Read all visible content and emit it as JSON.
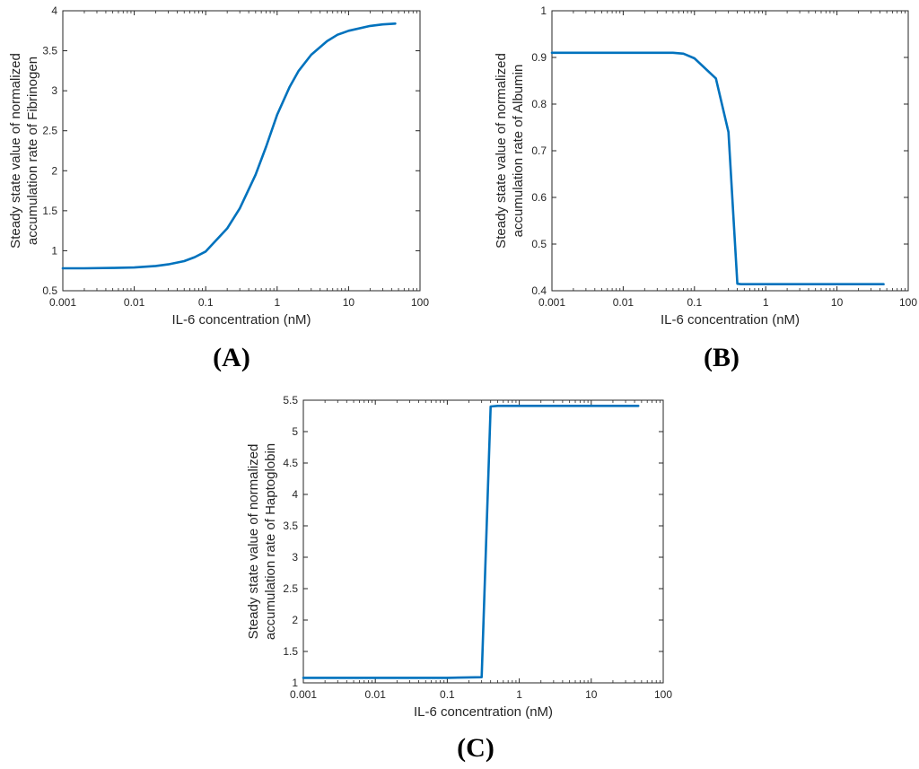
{
  "style": {
    "line_color": "#0072BD",
    "axis_color": "#262626"
  },
  "chart_data": [
    {
      "type": "line",
      "panel_label": "(A)",
      "xlabel": "IL-6 concentration (nM)",
      "ylabel_lines": [
        "Steady state value of normalized",
        "accumulation rate of Fibrinogen"
      ],
      "xscale": "log",
      "xlim": [
        0.001,
        100
      ],
      "ylim": [
        0.5,
        4
      ],
      "xticks": [
        0.001,
        0.01,
        0.1,
        1,
        10,
        100
      ],
      "xtick_labels": [
        "0.001",
        "0.01",
        "0.1",
        "1",
        "10",
        "100"
      ],
      "yticks": [
        0.5,
        1,
        1.5,
        2,
        2.5,
        3,
        3.5,
        4
      ],
      "ytick_labels": [
        "0.5",
        "1",
        "1.5",
        "2",
        "2.5",
        "3",
        "3.5",
        "4"
      ],
      "grid": false,
      "series": [
        {
          "x": [
            0.001,
            0.002,
            0.005,
            0.01,
            0.02,
            0.03,
            0.05,
            0.07,
            0.1,
            0.2,
            0.3,
            0.5,
            0.7,
            1,
            1.5,
            2,
            3,
            5,
            7,
            10,
            20,
            30,
            45
          ],
          "y": [
            0.78,
            0.78,
            0.785,
            0.79,
            0.81,
            0.83,
            0.87,
            0.92,
            0.99,
            1.28,
            1.53,
            1.95,
            2.3,
            2.7,
            3.05,
            3.25,
            3.45,
            3.62,
            3.7,
            3.75,
            3.81,
            3.83,
            3.84
          ]
        }
      ]
    },
    {
      "type": "line",
      "panel_label": "(B)",
      "xlabel": "IL-6 concentration (nM)",
      "ylabel_lines": [
        "Steady state value of normalized",
        "accumulation rate of Albumin"
      ],
      "xscale": "log",
      "xlim": [
        0.001,
        100
      ],
      "ylim": [
        0.4,
        1
      ],
      "xticks": [
        0.001,
        0.01,
        0.1,
        1,
        10,
        100
      ],
      "xtick_labels": [
        "0.001",
        "0.01",
        "0.1",
        "1",
        "10",
        "100"
      ],
      "yticks": [
        0.4,
        0.5,
        0.6,
        0.7,
        0.8,
        0.9,
        1
      ],
      "ytick_labels": [
        "0.4",
        "0.5",
        "0.6",
        "0.7",
        "0.8",
        "0.9",
        "1"
      ],
      "grid": false,
      "series": [
        {
          "x": [
            0.001,
            0.01,
            0.05,
            0.07,
            0.1,
            0.2,
            0.3,
            0.4,
            0.45,
            1,
            10,
            45
          ],
          "y": [
            0.91,
            0.91,
            0.91,
            0.908,
            0.898,
            0.855,
            0.74,
            0.415,
            0.414,
            0.414,
            0.414,
            0.414
          ]
        }
      ]
    },
    {
      "type": "line",
      "panel_label": "(C)",
      "xlabel": "IL-6 concentration (nM)",
      "ylabel_lines": [
        "Steady state value of normalized",
        "accumulation rate of Haptoglobin"
      ],
      "xscale": "log",
      "xlim": [
        0.001,
        100
      ],
      "ylim": [
        1,
        5.5
      ],
      "xticks": [
        0.001,
        0.01,
        0.1,
        1,
        10,
        100
      ],
      "xtick_labels": [
        "0.001",
        "0.01",
        "0.1",
        "1",
        "10",
        "100"
      ],
      "yticks": [
        1,
        1.5,
        2,
        2.5,
        3,
        3.5,
        4,
        4.5,
        5,
        5.5
      ],
      "ytick_labels": [
        "1",
        "1.5",
        "2",
        "2.5",
        "3",
        "3.5",
        "4",
        "4.5",
        "5",
        "5.5"
      ],
      "grid": false,
      "series": [
        {
          "x": [
            0.001,
            0.01,
            0.1,
            0.3,
            0.4,
            0.5,
            1,
            10,
            45
          ],
          "y": [
            1.08,
            1.08,
            1.08,
            1.09,
            5.4,
            5.41,
            5.41,
            5.41,
            5.41
          ]
        }
      ]
    }
  ]
}
